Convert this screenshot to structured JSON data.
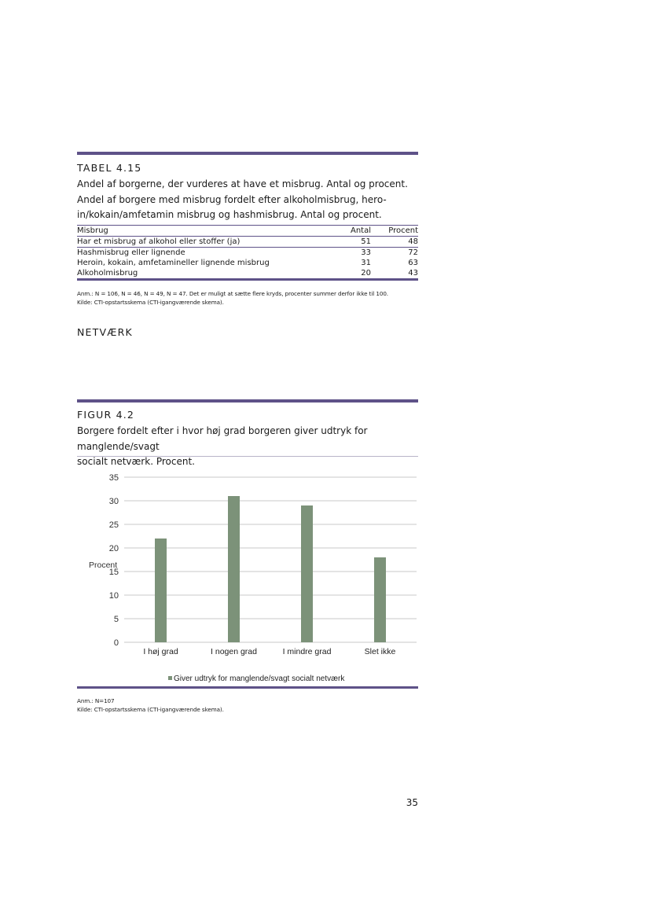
{
  "table": {
    "label": "TABEL 4.15",
    "caption_lines": [
      "Andel af borgerne, der vurderes at have et misbrug. Antal og procent.",
      "Andel af borgere med misbrug fordelt efter alkoholmisbrug, hero-",
      "in/kokain/amfetamin misbrug og hashmisbrug. Antal og procent."
    ],
    "headers": [
      "Misbrug",
      "Antal",
      "Procent"
    ],
    "rows": [
      [
        "Har et misbrug af alkohol eller stoffer (ja)",
        "51",
        "48"
      ],
      [
        "Hashmisbrug eller lignende",
        "33",
        "72"
      ],
      [
        "Heroin, kokain, amfetamineller lignende misbrug",
        "31",
        "63"
      ],
      [
        "Alkoholmisbrug",
        "20",
        "43"
      ]
    ],
    "note": "Anm.: N = 106, N = 46, N = 49, N = 47. Det er muligt at sætte flere kryds, procenter summer derfor ikke til 100.",
    "source": "Kilde:  CTI-opstartsskema (CTI-igangværende skema)."
  },
  "section_heading": "NETVÆRK",
  "figure": {
    "label": "FIGUR 4.2",
    "caption_lines": [
      "Borgere fordelt efter i hvor høj grad borgeren giver udtryk for manglende/svagt",
      "socialt netværk. Procent."
    ],
    "note": "Anm.: N=107",
    "source": "Kilde:  CTI-opstartsskema (CTI-igangværende skema)."
  },
  "chart_data": {
    "type": "bar",
    "categories": [
      "I høj grad",
      "I nogen grad",
      "I mindre grad",
      "Slet ikke"
    ],
    "series": [
      {
        "name": "Giver udtryk for manglende/svagt socialt netværk",
        "values": [
          22,
          31,
          29,
          18
        ]
      }
    ],
    "ylabel": "Procent",
    "xlabel": "",
    "ylim": [
      0,
      35
    ],
    "yticks": [
      "0",
      "5",
      "10",
      "15",
      "20",
      "25",
      "30",
      "35"
    ],
    "grid": true,
    "legend_position": "bottom",
    "bar_color": "#7c9279"
  },
  "page_number": "35"
}
